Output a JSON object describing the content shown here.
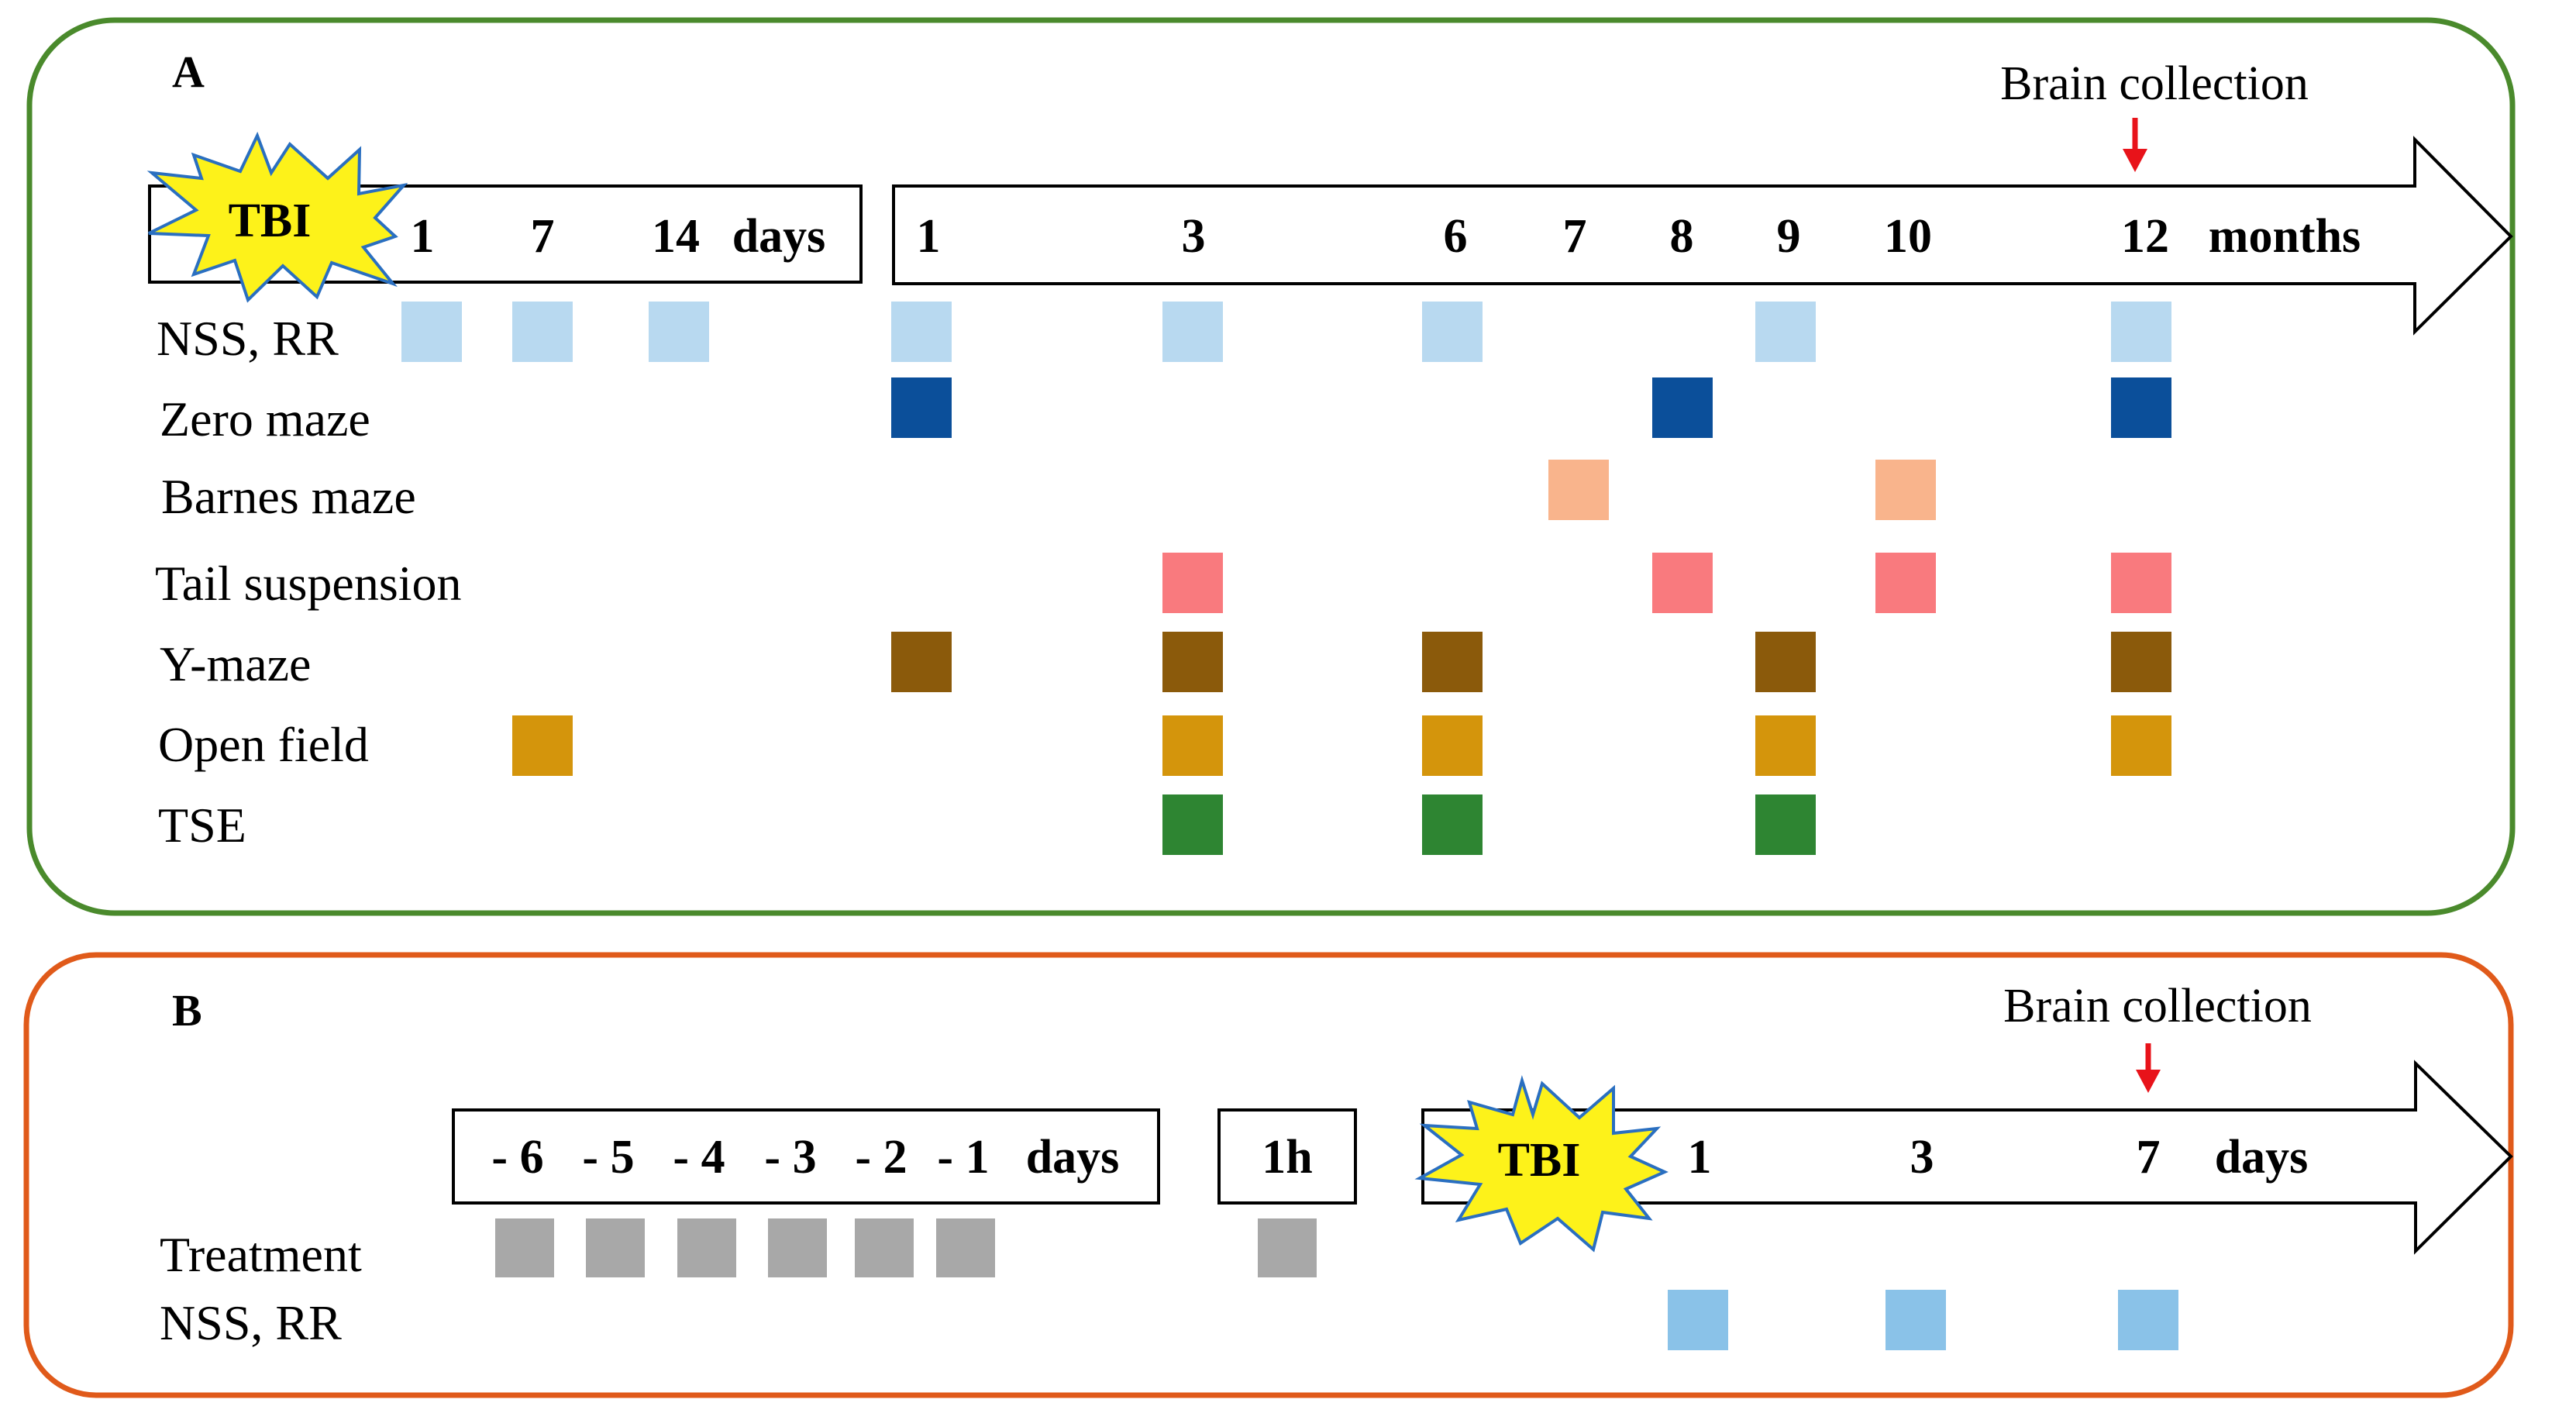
{
  "panel_a": {
    "letter": "A",
    "brain_collection": "Brain collection",
    "tbi": "TBI",
    "day_ticks": [
      "1",
      "7",
      "14"
    ],
    "day_unit": "days",
    "month_ticks": [
      "1",
      "3",
      "6",
      "7",
      "8",
      "9",
      "10",
      "12"
    ],
    "month_unit": "months",
    "rows": [
      {
        "label": "NSS, RR",
        "color": "#b8d9f0",
        "day_marks": [
          "1",
          "7",
          "14"
        ],
        "month_marks": [
          "1",
          "3",
          "6",
          "9",
          "12"
        ]
      },
      {
        "label": "Zero maze",
        "color": "#0b4f9a",
        "day_marks": [],
        "month_marks": [
          "1",
          "8",
          "12"
        ]
      },
      {
        "label": "Barnes maze",
        "color": "#f9b48c",
        "day_marks": [],
        "month_marks": [
          "7",
          "10"
        ]
      },
      {
        "label": "Tail suspension",
        "color": "#f97a7e",
        "day_marks": [],
        "month_marks": [
          "3",
          "8",
          "10",
          "12"
        ]
      },
      {
        "label": "Y-maze",
        "color": "#8b5a0b",
        "day_marks": [],
        "month_marks": [
          "1",
          "3",
          "6",
          "9",
          "12"
        ]
      },
      {
        "label": "Open field",
        "color": "#d4950c",
        "day_marks": [
          "7"
        ],
        "month_marks": [
          "3",
          "6",
          "9",
          "12"
        ]
      },
      {
        "label": "TSE",
        "color": "#2e8532",
        "day_marks": [],
        "month_marks": [
          "3",
          "6",
          "9"
        ]
      }
    ]
  },
  "panel_b": {
    "letter": "B",
    "brain_collection": "Brain collection",
    "tbi": "TBI",
    "pre_ticks": [
      "- 6",
      "- 5",
      "- 4",
      "- 3",
      "- 2",
      "- 1"
    ],
    "pre_unit": "days",
    "hour_tick": "1h",
    "post_ticks": [
      "1",
      "3",
      "7"
    ],
    "post_unit": "days",
    "rows": [
      {
        "label": "Treatment",
        "color": "#a8a8a8",
        "pre_marks": [
          "- 6",
          "- 5",
          "- 4",
          "- 3",
          "- 2",
          "- 1"
        ],
        "hour_mark": true,
        "post_marks": []
      },
      {
        "label": "NSS, RR",
        "color": "#8ac2e8",
        "pre_marks": [],
        "hour_mark": false,
        "post_marks": [
          "1",
          "3",
          "7"
        ]
      }
    ]
  },
  "colors": {
    "panel_a_border": "#4a8a2c",
    "panel_b_border": "#e05a1a",
    "arrow_red": "#e8131a",
    "star_fill": "#fdf21a",
    "star_stroke": "#2a6fc0"
  }
}
